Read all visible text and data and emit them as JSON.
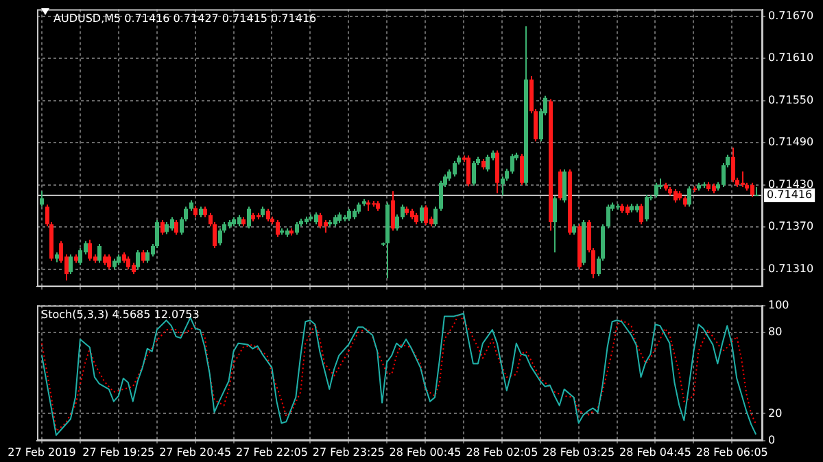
{
  "chart_data": [
    {
      "type": "candlestick",
      "title": "AUDUSD,M5 0.71416 0.71427 0.71415 0.71416",
      "x": [
        "2019-02-27T18:05",
        "2019-02-27T18:10",
        "2019-02-27T18:15",
        "2019-02-27T18:20",
        "2019-02-27T18:25",
        "2019-02-27T18:30",
        "2019-02-27T18:35",
        "2019-02-27T18:40",
        "2019-02-27T18:45",
        "2019-02-27T18:50",
        "2019-02-27T18:55",
        "2019-02-27T19:00",
        "2019-02-27T19:05",
        "2019-02-27T19:10",
        "2019-02-27T19:15",
        "2019-02-27T19:20",
        "2019-02-27T19:25",
        "2019-02-27T19:30",
        "2019-02-27T19:35",
        "2019-02-27T19:40",
        "2019-02-27T19:45",
        "2019-02-27T19:50",
        "2019-02-27T19:55",
        "2019-02-27T20:00",
        "2019-02-27T20:05",
        "2019-02-27T20:10",
        "2019-02-27T20:15",
        "2019-02-27T20:20",
        "2019-02-27T20:25",
        "2019-02-27T20:30",
        "2019-02-27T20:35",
        "2019-02-27T20:40",
        "2019-02-27T20:45",
        "2019-02-27T20:50",
        "2019-02-27T20:55",
        "2019-02-27T21:00",
        "2019-02-27T21:05",
        "2019-02-27T21:10",
        "2019-02-27T21:15",
        "2019-02-27T21:20",
        "2019-02-27T21:25",
        "2019-02-27T21:30",
        "2019-02-27T21:35",
        "2019-02-27T21:40",
        "2019-02-27T21:45",
        "2019-02-27T21:50",
        "2019-02-27T21:55",
        "2019-02-27T22:00",
        "2019-02-27T22:05",
        "2019-02-27T22:10",
        "2019-02-27T22:15",
        "2019-02-27T22:20",
        "2019-02-27T22:25",
        "2019-02-27T22:30",
        "2019-02-27T22:35",
        "2019-02-27T22:40",
        "2019-02-27T22:45",
        "2019-02-27T22:50",
        "2019-02-27T22:55",
        "2019-02-27T23:00",
        "2019-02-27T23:05",
        "2019-02-27T23:10",
        "2019-02-27T23:15",
        "2019-02-27T23:20",
        "2019-02-27T23:25",
        "2019-02-27T23:30",
        "2019-02-27T23:35",
        "2019-02-27T23:40",
        "2019-02-27T23:45",
        "2019-02-27T23:50",
        "2019-02-27T23:55",
        "2019-02-28T00:00",
        "2019-02-28T00:05",
        "2019-02-28T00:10",
        "2019-02-28T00:15",
        "2019-02-28T00:20",
        "2019-02-28T00:25",
        "2019-02-28T00:30",
        "2019-02-28T00:35",
        "2019-02-28T00:40",
        "2019-02-28T00:45",
        "2019-02-28T00:50",
        "2019-02-28T00:55",
        "2019-02-28T01:00",
        "2019-02-28T01:05",
        "2019-02-28T01:10",
        "2019-02-28T01:15",
        "2019-02-28T01:20",
        "2019-02-28T01:25",
        "2019-02-28T01:30",
        "2019-02-28T01:35",
        "2019-02-28T01:40",
        "2019-02-28T01:45",
        "2019-02-28T01:50",
        "2019-02-28T01:55",
        "2019-02-28T02:00",
        "2019-02-28T02:05",
        "2019-02-28T02:10",
        "2019-02-28T02:15",
        "2019-02-28T02:20",
        "2019-02-28T02:25",
        "2019-02-28T02:30",
        "2019-02-28T02:35",
        "2019-02-28T02:40",
        "2019-02-28T02:45",
        "2019-02-28T02:50",
        "2019-02-28T02:55",
        "2019-02-28T03:00",
        "2019-02-28T03:05",
        "2019-02-28T03:10",
        "2019-02-28T03:15",
        "2019-02-28T03:20",
        "2019-02-28T03:25",
        "2019-02-28T03:30",
        "2019-02-28T03:35",
        "2019-02-28T03:40",
        "2019-02-28T03:45",
        "2019-02-28T03:50",
        "2019-02-28T03:55",
        "2019-02-28T04:00",
        "2019-02-28T04:05",
        "2019-02-28T04:10",
        "2019-02-28T04:15",
        "2019-02-28T04:20",
        "2019-02-28T04:25",
        "2019-02-28T04:30",
        "2019-02-28T04:35",
        "2019-02-28T04:40",
        "2019-02-28T04:45",
        "2019-02-28T04:50",
        "2019-02-28T04:55",
        "2019-02-28T05:00",
        "2019-02-28T05:05",
        "2019-02-28T05:10",
        "2019-02-28T05:15",
        "2019-02-28T05:20",
        "2019-02-28T05:25",
        "2019-02-28T05:30",
        "2019-02-28T05:35",
        "2019-02-28T05:40",
        "2019-02-28T05:45",
        "2019-02-28T05:50",
        "2019-02-28T05:55",
        "2019-02-28T06:00",
        "2019-02-28T06:05",
        "2019-02-28T06:10",
        "2019-02-28T06:15",
        "2019-02-28T06:20",
        "2019-02-28T06:25",
        "2019-02-28T06:30"
      ],
      "ohlc": [
        [
          0.71402,
          0.71421,
          0.71399,
          0.71411
        ],
        [
          0.71399,
          0.71402,
          0.71371,
          0.71374
        ],
        [
          0.71374,
          0.71377,
          0.71322,
          0.71325
        ],
        [
          0.71325,
          0.71334,
          0.7132,
          0.71331
        ],
        [
          0.71347,
          0.7135,
          0.71319,
          0.71322
        ],
        [
          0.71328,
          0.71331,
          0.71294,
          0.71303
        ],
        [
          0.71306,
          0.71331,
          0.71303,
          0.71328
        ],
        [
          0.71328,
          0.71331,
          0.71319,
          0.71322
        ],
        [
          0.71319,
          0.7134,
          0.71316,
          0.71337
        ],
        [
          0.71334,
          0.7135,
          0.71331,
          0.71347
        ],
        [
          0.71347,
          0.71352,
          0.71322,
          0.71325
        ],
        [
          0.71328,
          0.71331,
          0.71319,
          0.71322
        ],
        [
          0.71322,
          0.71346,
          0.71319,
          0.71343
        ],
        [
          0.71328,
          0.71331,
          0.71316,
          0.71319
        ],
        [
          0.71328,
          0.71331,
          0.7131,
          0.71313
        ],
        [
          0.71313,
          0.71325,
          0.7131,
          0.71322
        ],
        [
          0.71319,
          0.71331,
          0.71316,
          0.71328
        ],
        [
          0.71331,
          0.71334,
          0.71319,
          0.71322
        ],
        [
          0.71325,
          0.71328,
          0.7131,
          0.71313
        ],
        [
          0.71316,
          0.71319,
          0.71303,
          0.71306
        ],
        [
          0.71313,
          0.71337,
          0.7131,
          0.71334
        ],
        [
          0.71334,
          0.71337,
          0.71319,
          0.71322
        ],
        [
          0.71322,
          0.71337,
          0.71319,
          0.71334
        ],
        [
          0.71331,
          0.71346,
          0.71328,
          0.71343
        ],
        [
          0.71343,
          0.7138,
          0.7134,
          0.71377
        ],
        [
          0.71377,
          0.7138,
          0.71359,
          0.71362
        ],
        [
          0.71363,
          0.71377,
          0.7136,
          0.71374
        ],
        [
          0.71368,
          0.71384,
          0.71365,
          0.71381
        ],
        [
          0.71377,
          0.7138,
          0.71359,
          0.71362
        ],
        [
          0.71362,
          0.71384,
          0.71359,
          0.71381
        ],
        [
          0.71381,
          0.71399,
          0.71378,
          0.71396
        ],
        [
          0.71396,
          0.71408,
          0.71393,
          0.71405
        ],
        [
          0.71397,
          0.714,
          0.71384,
          0.71387
        ],
        [
          0.71387,
          0.71399,
          0.71384,
          0.71396
        ],
        [
          0.71396,
          0.71399,
          0.71384,
          0.71387
        ],
        [
          0.71387,
          0.7139,
          0.71371,
          0.71374
        ],
        [
          0.71374,
          0.71377,
          0.7134,
          0.71343
        ],
        [
          0.71347,
          0.71368,
          0.71344,
          0.71365
        ],
        [
          0.71365,
          0.71377,
          0.71362,
          0.71374
        ],
        [
          0.71371,
          0.7138,
          0.71368,
          0.71377
        ],
        [
          0.71374,
          0.71384,
          0.71371,
          0.71381
        ],
        [
          0.71374,
          0.71387,
          0.71371,
          0.71384
        ],
        [
          0.71381,
          0.71384,
          0.71371,
          0.71374
        ],
        [
          0.71371,
          0.71399,
          0.71368,
          0.71396
        ],
        [
          0.71387,
          0.7139,
          0.71378,
          0.71381
        ],
        [
          0.71387,
          0.7139,
          0.71381,
          0.71384
        ],
        [
          0.71387,
          0.71399,
          0.71384,
          0.71396
        ],
        [
          0.71393,
          0.71396,
          0.71378,
          0.71381
        ],
        [
          0.71382,
          0.71385,
          0.71374,
          0.71377
        ],
        [
          0.71377,
          0.7138,
          0.71356,
          0.71359
        ],
        [
          0.71362,
          0.71368,
          0.71359,
          0.71365
        ],
        [
          0.71359,
          0.71368,
          0.71356,
          0.71365
        ],
        [
          0.71365,
          0.71368,
          0.71358,
          0.71361
        ],
        [
          0.71362,
          0.71377,
          0.71359,
          0.71374
        ],
        [
          0.71374,
          0.71382,
          0.71371,
          0.71379
        ],
        [
          0.71377,
          0.71385,
          0.71374,
          0.71382
        ],
        [
          0.71381,
          0.71388,
          0.71378,
          0.71385
        ],
        [
          0.71377,
          0.71391,
          0.71374,
          0.71388
        ],
        [
          0.71387,
          0.7139,
          0.71368,
          0.71371
        ],
        [
          0.71377,
          0.7138,
          0.71362,
          0.71371
        ],
        [
          0.71374,
          0.7138,
          0.71371,
          0.71377
        ],
        [
          0.71374,
          0.71387,
          0.71371,
          0.71384
        ],
        [
          0.71379,
          0.71391,
          0.71376,
          0.71388
        ],
        [
          0.71381,
          0.71387,
          0.71378,
          0.71384
        ],
        [
          0.71382,
          0.71396,
          0.71379,
          0.71393
        ],
        [
          0.71384,
          0.71396,
          0.71381,
          0.71393
        ],
        [
          0.71392,
          0.71405,
          0.71389,
          0.71402
        ],
        [
          0.71403,
          0.7141,
          0.714,
          0.71407
        ],
        [
          0.71405,
          0.71408,
          0.71393,
          0.71402
        ],
        [
          0.71404,
          0.71407,
          0.71399,
          0.71402
        ],
        [
          0.71404,
          0.71407,
          0.71393,
          0.71396
        ],
        [
          0.71345,
          0.71348,
          0.71343,
          0.71347
        ],
        [
          0.71347,
          0.71405,
          0.71297,
          0.71402
        ],
        [
          0.71408,
          0.71421,
          0.71365,
          0.71368
        ],
        [
          0.71368,
          0.71388,
          0.71365,
          0.71385
        ],
        [
          0.71384,
          0.71402,
          0.71381,
          0.71399
        ],
        [
          0.71396,
          0.71399,
          0.71387,
          0.7139
        ],
        [
          0.71393,
          0.71396,
          0.71381,
          0.71384
        ],
        [
          0.71387,
          0.7139,
          0.71374,
          0.71377
        ],
        [
          0.71379,
          0.71401,
          0.71376,
          0.71398
        ],
        [
          0.71398,
          0.71401,
          0.71373,
          0.71376
        ],
        [
          0.71382,
          0.71385,
          0.71371,
          0.71374
        ],
        [
          0.71374,
          0.71399,
          0.71371,
          0.71396
        ],
        [
          0.71396,
          0.71436,
          0.71393,
          0.71433
        ],
        [
          0.7143,
          0.71445,
          0.71427,
          0.71442
        ],
        [
          0.71439,
          0.71452,
          0.71436,
          0.71449
        ],
        [
          0.71445,
          0.71464,
          0.71442,
          0.71461
        ],
        [
          0.71462,
          0.71472,
          0.71459,
          0.71469
        ],
        [
          0.71469,
          0.71472,
          0.71463,
          0.71466
        ],
        [
          0.71469,
          0.71472,
          0.71428,
          0.71431
        ],
        [
          0.71432,
          0.71464,
          0.71429,
          0.71461
        ],
        [
          0.71461,
          0.7147,
          0.71458,
          0.71467
        ],
        [
          0.71464,
          0.71467,
          0.71452,
          0.71455
        ],
        [
          0.71452,
          0.71473,
          0.71449,
          0.7147
        ],
        [
          0.71468,
          0.71479,
          0.71465,
          0.71476
        ],
        [
          0.71476,
          0.71479,
          0.71418,
          0.71433
        ],
        [
          0.71431,
          0.71442,
          0.71415,
          0.71439
        ],
        [
          0.71439,
          0.71453,
          0.71436,
          0.7145
        ],
        [
          0.71449,
          0.71474,
          0.71446,
          0.71471
        ],
        [
          0.71468,
          0.71476,
          0.71465,
          0.71473
        ],
        [
          0.71471,
          0.71474,
          0.7143,
          0.71433
        ],
        [
          0.71433,
          0.71656,
          0.7143,
          0.7158
        ],
        [
          0.7158,
          0.71585,
          0.71532,
          0.71535
        ],
        [
          0.71535,
          0.71538,
          0.71492,
          0.71495
        ],
        [
          0.71495,
          0.71538,
          0.71492,
          0.71535
        ],
        [
          0.71532,
          0.71557,
          0.71529,
          0.71554
        ],
        [
          0.71549,
          0.71552,
          0.71365,
          0.71377
        ],
        [
          0.71377,
          0.71414,
          0.71334,
          0.71411
        ],
        [
          0.71449,
          0.71452,
          0.71408,
          0.71411
        ],
        [
          0.71408,
          0.71452,
          0.71405,
          0.71449
        ],
        [
          0.71449,
          0.71452,
          0.71359,
          0.71362
        ],
        [
          0.71362,
          0.71374,
          0.71359,
          0.71371
        ],
        [
          0.71371,
          0.71374,
          0.7131,
          0.71313
        ],
        [
          0.71319,
          0.7138,
          0.71316,
          0.71377
        ],
        [
          0.71377,
          0.7138,
          0.71334,
          0.71337
        ],
        [
          0.71337,
          0.7134,
          0.71297,
          0.71303
        ],
        [
          0.71303,
          0.71328,
          0.713,
          0.71325
        ],
        [
          0.71325,
          0.71374,
          0.71322,
          0.71371
        ],
        [
          0.71371,
          0.71402,
          0.71368,
          0.71399
        ],
        [
          0.71396,
          0.71405,
          0.71393,
          0.71402
        ],
        [
          0.71398,
          0.71403,
          0.71395,
          0.714
        ],
        [
          0.714,
          0.71403,
          0.7139,
          0.71393
        ],
        [
          0.71399,
          0.71402,
          0.71387,
          0.7139
        ],
        [
          0.71394,
          0.71403,
          0.71391,
          0.714
        ],
        [
          0.71394,
          0.71403,
          0.71391,
          0.714
        ],
        [
          0.714,
          0.71403,
          0.71374,
          0.71377
        ],
        [
          0.71381,
          0.71416,
          0.71378,
          0.71413
        ],
        [
          0.71411,
          0.71416,
          0.71408,
          0.71413
        ],
        [
          0.71415,
          0.71433,
          0.71412,
          0.7143
        ],
        [
          0.71427,
          0.71439,
          0.71424,
          0.7143
        ],
        [
          0.7143,
          0.71433,
          0.71422,
          0.71425
        ],
        [
          0.71424,
          0.71427,
          0.71415,
          0.71418
        ],
        [
          0.71421,
          0.71424,
          0.71405,
          0.71408
        ],
        [
          0.71418,
          0.71421,
          0.71408,
          0.71411
        ],
        [
          0.71411,
          0.71414,
          0.71399,
          0.71402
        ],
        [
          0.71402,
          0.71428,
          0.71399,
          0.71425
        ],
        [
          0.71425,
          0.71428,
          0.7142,
          0.71423
        ],
        [
          0.71425,
          0.71433,
          0.71422,
          0.7143
        ],
        [
          0.71429,
          0.71434,
          0.71426,
          0.71431
        ],
        [
          0.71431,
          0.71434,
          0.71421,
          0.71424
        ],
        [
          0.71429,
          0.71432,
          0.71418,
          0.71421
        ],
        [
          0.71425,
          0.71434,
          0.71422,
          0.71431
        ],
        [
          0.7143,
          0.71461,
          0.71427,
          0.71458
        ],
        [
          0.71458,
          0.71473,
          0.71455,
          0.7147
        ],
        [
          0.7147,
          0.71483,
          0.71434,
          0.71437
        ],
        [
          0.71437,
          0.7144,
          0.71427,
          0.7143
        ],
        [
          0.71433,
          0.71449,
          0.71427,
          0.7143
        ],
        [
          0.7143,
          0.71433,
          0.71422,
          0.71425
        ],
        [
          0.7143,
          0.71433,
          0.71413,
          0.71416
        ],
        [
          0.71416,
          0.71427,
          0.71415,
          0.71416
        ]
      ],
      "xlim": [
        "2019-02-27T18:00",
        "2019-02-28T06:37"
      ],
      "xticks": [
        "2019-02-27T18:05",
        "2019-02-27T18:45",
        "2019-02-27T19:25",
        "2019-02-27T20:05",
        "2019-02-27T20:45",
        "2019-02-27T21:25",
        "2019-02-27T22:05",
        "2019-02-27T22:45",
        "2019-02-27T23:25",
        "2019-02-28T00:05",
        "2019-02-28T00:45",
        "2019-02-28T01:25",
        "2019-02-28T02:05",
        "2019-02-28T02:45",
        "2019-02-28T03:25",
        "2019-02-28T04:05",
        "2019-02-28T04:45",
        "2019-02-28T05:25",
        "2019-02-28T06:05"
      ],
      "ylim": [
        0.71285,
        0.7168
      ],
      "yticks": [
        {
          "value": 0.7131,
          "label": "0.71310"
        },
        {
          "value": 0.7137,
          "label": "0.71370"
        },
        {
          "value": 0.7143,
          "label": "0.71430"
        },
        {
          "value": 0.7149,
          "label": "0.71490"
        },
        {
          "value": 0.7155,
          "label": "0.71550"
        },
        {
          "value": 0.7161,
          "label": "0.71610"
        },
        {
          "value": 0.7167,
          "label": "0.71670"
        }
      ],
      "tick_labels": "y",
      "grid": true,
      "ref_lines": [
        {
          "axis": "y",
          "value": 0.71416,
          "label": "0.71416",
          "color": "#c0c0c0"
        }
      ]
    },
    {
      "type": "line",
      "title": "Stoch(5,3,3) 4.5685 12.0753",
      "series": [
        {
          "color": "#20b2aa",
          "x": [
            "2019-02-27T18:05",
            "2019-02-27T18:20",
            "2019-02-27T18:25",
            "2019-02-27T18:35",
            "2019-02-27T18:40",
            "2019-02-27T18:45",
            "2019-02-27T18:55",
            "2019-02-27T19:00",
            "2019-02-27T19:05",
            "2019-02-27T19:15",
            "2019-02-27T19:20",
            "2019-02-27T19:25",
            "2019-02-27T19:30",
            "2019-02-27T19:35",
            "2019-02-27T19:40",
            "2019-02-27T19:45",
            "2019-02-27T19:50",
            "2019-02-27T19:55",
            "2019-02-27T20:00",
            "2019-02-27T20:05",
            "2019-02-27T20:15",
            "2019-02-27T20:20",
            "2019-02-27T20:25",
            "2019-02-27T20:30",
            "2019-02-27T20:40",
            "2019-02-27T20:45",
            "2019-02-27T20:50",
            "2019-02-27T20:55",
            "2019-02-27T21:00",
            "2019-02-27T21:05",
            "2019-02-27T21:10",
            "2019-02-27T21:20",
            "2019-02-27T21:25",
            "2019-02-27T21:30",
            "2019-02-27T21:40",
            "2019-02-27T21:45",
            "2019-02-27T21:50",
            "2019-02-27T21:55",
            "2019-02-27T22:05",
            "2019-02-27T22:10",
            "2019-02-27T22:15",
            "2019-02-27T22:20",
            "2019-02-27T22:30",
            "2019-02-27T22:35",
            "2019-02-27T22:40",
            "2019-02-27T22:45",
            "2019-02-27T22:50",
            "2019-02-27T22:55",
            "2019-02-27T23:05",
            "2019-02-27T23:10",
            "2019-02-27T23:15",
            "2019-02-27T23:25",
            "2019-02-27T23:35",
            "2019-02-27T23:40",
            "2019-02-27T23:50",
            "2019-02-27T23:55",
            "2019-02-28T00:00",
            "2019-02-28T00:05",
            "2019-02-28T00:10",
            "2019-02-28T00:15",
            "2019-02-28T00:20",
            "2019-02-28T00:25",
            "2019-02-28T00:30",
            "2019-02-28T00:40",
            "2019-02-28T00:45",
            "2019-02-28T00:50",
            "2019-02-28T00:55",
            "2019-02-28T01:00",
            "2019-02-28T01:05",
            "2019-02-28T01:15",
            "2019-02-28T01:25",
            "2019-02-28T01:30",
            "2019-02-28T01:35",
            "2019-02-28T01:40",
            "2019-02-28T01:45",
            "2019-02-28T01:55",
            "2019-02-28T02:00",
            "2019-02-28T02:05",
            "2019-02-28T02:10",
            "2019-02-28T02:15",
            "2019-02-28T02:20",
            "2019-02-28T02:25",
            "2019-02-28T02:30",
            "2019-02-28T02:35",
            "2019-02-28T02:45",
            "2019-02-28T02:50",
            "2019-02-28T02:55",
            "2019-02-28T03:00",
            "2019-02-28T03:05",
            "2019-02-28T03:10",
            "2019-02-28T03:20",
            "2019-02-28T03:25",
            "2019-02-28T03:30",
            "2019-02-28T03:35",
            "2019-02-28T03:40",
            "2019-02-28T03:45",
            "2019-02-28T03:50",
            "2019-02-28T03:55",
            "2019-02-28T04:00",
            "2019-02-28T04:05",
            "2019-02-28T04:10",
            "2019-02-28T04:20",
            "2019-02-28T04:25",
            "2019-02-28T04:30",
            "2019-02-28T04:35",
            "2019-02-28T04:40",
            "2019-02-28T04:45",
            "2019-02-28T04:50",
            "2019-02-28T05:00",
            "2019-02-28T05:05",
            "2019-02-28T05:10",
            "2019-02-28T05:15",
            "2019-02-28T05:20",
            "2019-02-28T05:25",
            "2019-02-28T05:30",
            "2019-02-28T05:35",
            "2019-02-28T05:45",
            "2019-02-28T05:50",
            "2019-02-28T05:55",
            "2019-02-28T06:00",
            "2019-02-28T06:05",
            "2019-02-28T06:10",
            "2019-02-28T06:20",
            "2019-02-28T06:25",
            "2019-02-28T06:30"
          ],
          "values": [
            63,
            4,
            8,
            16,
            32,
            75,
            69,
            47,
            42,
            38,
            29,
            33,
            46,
            43,
            29,
            44,
            54,
            68,
            66,
            82,
            89,
            85,
            77,
            76,
            91,
            83,
            82,
            69,
            50,
            21,
            29,
            44,
            66,
            72,
            71,
            68,
            70,
            64,
            54,
            29,
            13,
            14,
            32,
            63,
            88,
            89,
            86,
            66,
            38,
            53,
            63,
            71,
            84,
            84,
            78,
            66,
            28,
            58,
            63,
            72,
            69,
            75,
            69,
            54,
            40,
            29,
            32,
            60,
            92,
            92,
            94,
            75,
            57,
            57,
            72,
            82,
            72,
            54,
            37,
            51,
            72,
            64,
            63,
            55,
            44,
            40,
            41,
            33,
            26,
            38,
            32,
            13,
            19,
            22,
            24,
            21,
            41,
            69,
            88,
            89,
            88,
            78,
            71,
            47,
            58,
            64,
            86,
            85,
            72,
            43,
            26,
            15,
            40,
            66,
            86,
            83,
            71,
            57,
            72,
            85,
            71,
            46,
            22,
            12,
            4.5685
          ]
        },
        {
          "color": "#ff0000",
          "line_style": "dotted",
          "x": [
            "2019-02-27T18:05",
            "2019-02-27T18:15",
            "2019-02-27T18:20",
            "2019-02-27T18:30",
            "2019-02-27T18:40",
            "2019-02-27T18:50",
            "2019-02-27T18:55",
            "2019-02-27T19:00",
            "2019-02-27T19:10",
            "2019-02-27T19:20",
            "2019-02-27T19:30",
            "2019-02-27T19:40",
            "2019-02-27T19:45",
            "2019-02-27T19:55",
            "2019-02-27T20:05",
            "2019-02-27T20:15",
            "2019-02-27T20:25",
            "2019-02-27T20:30",
            "2019-02-27T20:40",
            "2019-02-27T20:45",
            "2019-02-27T20:55",
            "2019-02-27T21:00",
            "2019-02-27T21:05",
            "2019-02-27T21:15",
            "2019-02-27T21:20",
            "2019-02-27T21:25",
            "2019-02-27T21:35",
            "2019-02-27T21:45",
            "2019-02-27T21:50",
            "2019-02-27T22:00",
            "2019-02-27T22:05",
            "2019-02-27T22:15",
            "2019-02-27T22:20",
            "2019-02-27T22:25",
            "2019-02-27T22:35",
            "2019-02-27T22:40",
            "2019-02-27T22:50",
            "2019-02-27T22:55",
            "2019-02-27T23:00",
            "2019-02-27T23:10",
            "2019-02-27T23:15",
            "2019-02-27T23:25",
            "2019-02-27T23:35",
            "2019-02-27T23:45",
            "2019-02-27T23:50",
            "2019-02-27T23:55",
            "2019-02-28T00:05",
            "2019-02-28T00:10",
            "2019-02-28T00:15",
            "2019-02-28T00:20",
            "2019-02-28T00:30",
            "2019-02-28T00:40",
            "2019-02-28T00:45",
            "2019-02-28T00:55",
            "2019-02-28T01:00",
            "2019-02-28T01:05",
            "2019-02-28T01:15",
            "2019-02-28T01:20",
            "2019-02-28T01:30",
            "2019-02-28T01:40",
            "2019-02-28T01:45",
            "2019-02-28T01:55",
            "2019-02-28T02:00",
            "2019-02-28T02:10",
            "2019-02-28T02:20",
            "2019-02-28T02:25",
            "2019-02-28T02:30",
            "2019-02-28T02:35",
            "2019-02-28T02:45",
            "2019-02-28T02:50",
            "2019-02-28T03:00",
            "2019-02-28T03:10",
            "2019-02-28T03:20",
            "2019-02-28T03:25",
            "2019-02-28T03:35",
            "2019-02-28T03:45",
            "2019-02-28T03:50",
            "2019-02-28T04:00",
            "2019-02-28T04:05",
            "2019-02-28T04:10",
            "2019-02-28T04:20",
            "2019-02-28T04:25",
            "2019-02-28T04:35",
            "2019-02-28T04:40",
            "2019-02-28T04:50",
            "2019-02-28T04:55",
            "2019-02-28T05:00",
            "2019-02-28T05:10",
            "2019-02-28T05:15",
            "2019-02-28T05:25",
            "2019-02-28T05:30",
            "2019-02-28T05:40",
            "2019-02-28T05:50",
            "2019-02-28T05:55",
            "2019-02-28T06:00",
            "2019-02-28T06:10",
            "2019-02-28T06:15",
            "2019-02-28T06:20",
            "2019-02-28T06:25",
            "2019-02-28T06:30"
          ],
          "values": [
            72,
            32,
            7,
            13,
            26,
            57,
            68,
            57,
            44,
            36,
            38,
            40,
            47,
            63,
            74,
            82,
            82,
            78,
            82,
            85,
            77,
            50,
            30,
            26,
            38,
            57,
            69,
            71,
            68,
            63,
            50,
            30,
            18,
            21,
            36,
            72,
            86,
            75,
            57,
            48,
            54,
            66,
            80,
            83,
            77,
            66,
            50,
            49,
            63,
            71,
            69,
            57,
            38,
            33,
            43,
            75,
            86,
            94,
            83,
            69,
            61,
            75,
            63,
            47,
            49,
            64,
            66,
            60,
            46,
            43,
            36,
            33,
            32,
            22,
            19,
            24,
            36,
            66,
            85,
            89,
            85,
            72,
            57,
            61,
            75,
            83,
            78,
            50,
            29,
            33,
            66,
            82,
            72,
            66,
            69,
            77,
            60,
            35,
            20,
            12.0753
          ]
        }
      ],
      "xlim": [
        "2019-02-27T18:00",
        "2019-02-28T06:37"
      ],
      "xticks": [
        {
          "value": "2019-02-27T18:05",
          "label": "27 Feb 2019"
        },
        {
          "value": "2019-02-27T18:45",
          "label": null
        },
        {
          "value": "2019-02-27T19:25",
          "label": "27 Feb 19:25"
        },
        {
          "value": "2019-02-27T20:05",
          "label": null
        },
        {
          "value": "2019-02-27T20:45",
          "label": "27 Feb 20:45"
        },
        {
          "value": "2019-02-27T21:25",
          "label": null
        },
        {
          "value": "2019-02-27T22:05",
          "label": "27 Feb 22:05"
        },
        {
          "value": "2019-02-27T22:45",
          "label": null
        },
        {
          "value": "2019-02-27T23:25",
          "label": "27 Feb 23:25"
        },
        {
          "value": "2019-02-28T00:05",
          "label": null
        },
        {
          "value": "2019-02-28T00:45",
          "label": "28 Feb 00:45"
        },
        {
          "value": "2019-02-28T01:25",
          "label": null
        },
        {
          "value": "2019-02-28T02:05",
          "label": "28 Feb 02:05"
        },
        {
          "value": "2019-02-28T02:45",
          "label": null
        },
        {
          "value": "2019-02-28T03:25",
          "label": "28 Feb 03:25"
        },
        {
          "value": "2019-02-28T04:05",
          "label": null
        },
        {
          "value": "2019-02-28T04:45",
          "label": "28 Feb 04:45"
        },
        {
          "value": "2019-02-28T05:25",
          "label": null
        },
        {
          "value": "2019-02-28T06:05",
          "label": "28 Feb 06:05"
        }
      ],
      "ylim": [
        0,
        100
      ],
      "yticks": [
        0,
        20,
        80,
        100
      ],
      "grid": true
    }
  ]
}
